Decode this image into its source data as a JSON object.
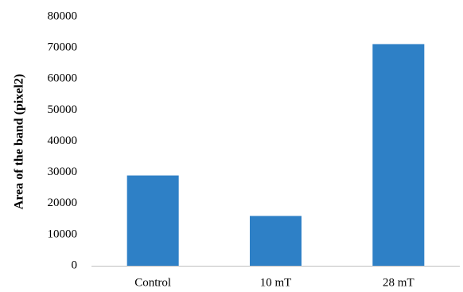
{
  "chart_data": {
    "type": "bar",
    "title": "",
    "xlabel": "",
    "ylabel": "Area of the band  (pixel2)",
    "categories": [
      "Control",
      "10 mT",
      "28 mT"
    ],
    "values": [
      29000,
      16000,
      71200
    ],
    "ylim": [
      0,
      80000
    ],
    "yticks": [
      0,
      10000,
      20000,
      30000,
      40000,
      50000,
      60000,
      70000,
      80000
    ],
    "grid": false,
    "legend": "none",
    "bar_color": "#2E80C6",
    "axis_color": "#BFBFBF"
  }
}
